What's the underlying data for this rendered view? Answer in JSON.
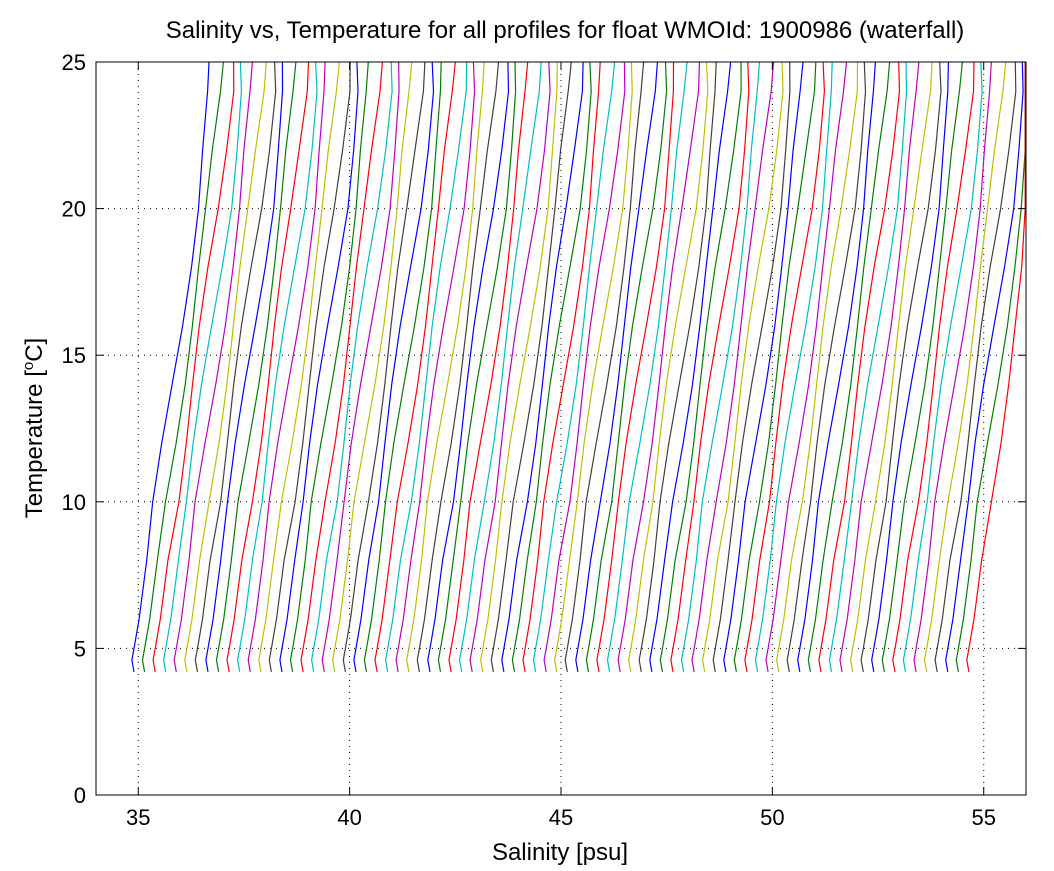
{
  "chart_data": {
    "type": "line",
    "title": "Salinity vs, Temperature for all profiles for float WMOId: 1900986 (waterfall)",
    "xlabel": "Salinity [psu]",
    "ylabel_main": "Temperature [",
    "ylabel_sup": "o",
    "ylabel_end": "C]",
    "xlim": [
      34,
      56
    ],
    "ylim": [
      0,
      25
    ],
    "xticks": [
      35,
      40,
      45,
      50,
      55
    ],
    "yticks": [
      0,
      5,
      10,
      15,
      20,
      25
    ],
    "xtick_labels": [
      "35",
      "40",
      "45",
      "50",
      "55"
    ],
    "ytick_labels": [
      "0",
      "5",
      "10",
      "15",
      "20",
      "25"
    ],
    "grid": true,
    "legend": "none",
    "series_colors": [
      "#0000ff",
      "#008000",
      "#ff0000",
      "#00bfbf",
      "#bf00bf",
      "#bfbf00",
      "#404040"
    ],
    "profile_count": 80,
    "profile_start_salinity": 34.9,
    "profile_spacing": 0.25,
    "profile_shape": {
      "temperature": [
        4.2,
        4.6,
        5.0,
        6.0,
        8.0,
        10.0,
        12.0,
        14.0,
        16.0,
        18.0,
        20.0,
        22.0,
        24.0,
        25.0
      ],
      "salinity_offset": [
        0.0,
        -0.05,
        0.0,
        0.12,
        0.3,
        0.5,
        0.7,
        0.9,
        1.1,
        1.3,
        1.5,
        1.65,
        1.8,
        1.82
      ]
    }
  }
}
